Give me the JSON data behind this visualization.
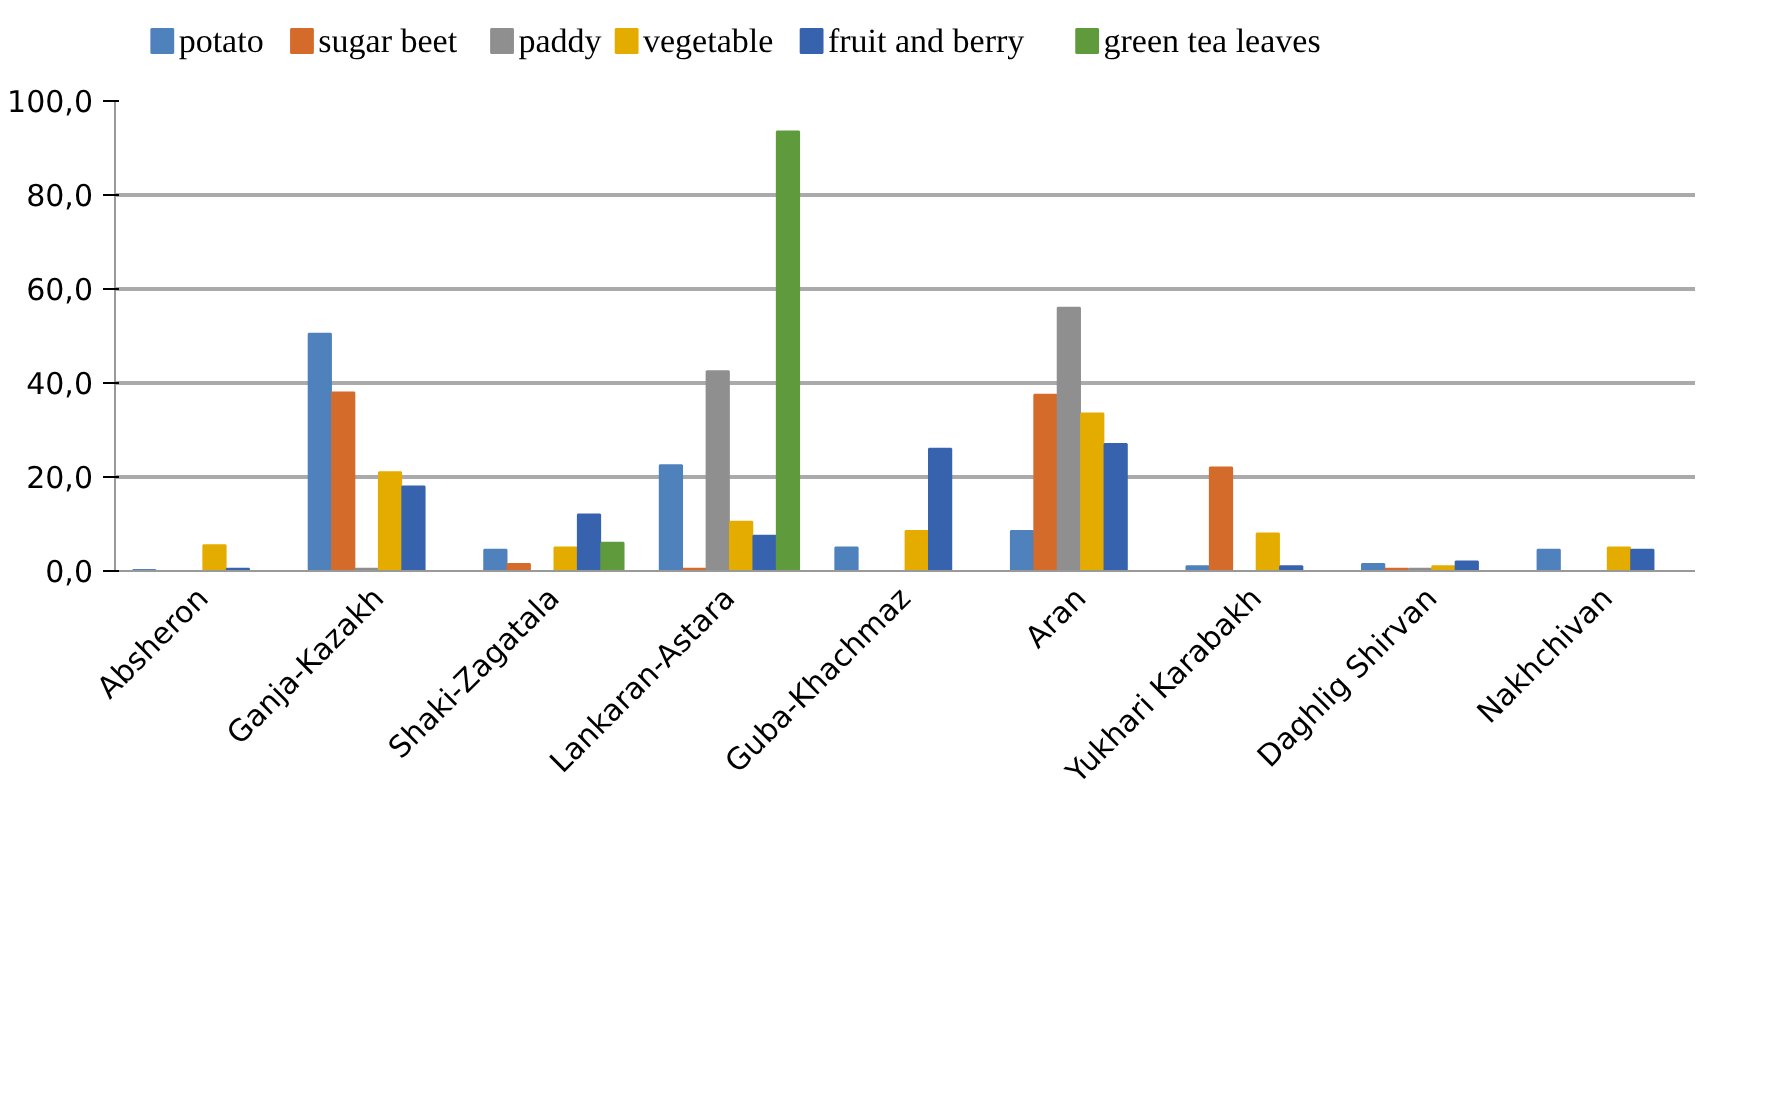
{
  "chart_data": {
    "type": "bar",
    "categories": [
      "Absheron",
      "Ganja-Kazakh",
      "Shaki-Zagatala",
      "Lankaran-Astara",
      "Guba-Khachmaz",
      "Aran",
      "Yukhari Karabakh",
      "Daghlig Shirvan",
      "Nakhchivan"
    ],
    "series": [
      {
        "name": "potato",
        "color": "#4f81bd",
        "values": [
          0.2,
          50.5,
          4.5,
          22.5,
          5,
          8.5,
          1,
          1.5,
          4.5
        ]
      },
      {
        "name": "sugar beet",
        "color": "#d56b2b",
        "values": [
          0,
          38,
          1.5,
          0.5,
          0,
          37.5,
          22,
          0.5,
          0
        ]
      },
      {
        "name": "paddy",
        "color": "#8f8f8f",
        "values": [
          0,
          0.5,
          0,
          42.5,
          0,
          56,
          0,
          0.5,
          0
        ]
      },
      {
        "name": "vegetable",
        "color": "#e5ac00",
        "values": [
          5.5,
          21,
          5,
          10.5,
          8.5,
          33.5,
          8,
          1,
          5
        ]
      },
      {
        "name": "fruit and berry",
        "color": "#3763ae",
        "values": [
          0.5,
          18,
          12,
          7.5,
          26,
          27,
          1,
          2,
          4.5
        ]
      },
      {
        "name": "green tea leaves",
        "color": "#5f9b3c",
        "values": [
          0,
          0,
          6,
          93.5,
          0,
          0,
          0,
          0,
          0
        ]
      }
    ],
    "ylim": [
      0,
      100
    ],
    "yticks": [
      {
        "value": 0,
        "label": "0,0"
      },
      {
        "value": 20,
        "label": "20,0"
      },
      {
        "value": 40,
        "label": "40,0"
      },
      {
        "value": 60,
        "label": "60,0"
      },
      {
        "value": 80,
        "label": "80,0"
      },
      {
        "value": 100,
        "label": "100,0"
      }
    ],
    "grid": "y",
    "legend": "top"
  }
}
